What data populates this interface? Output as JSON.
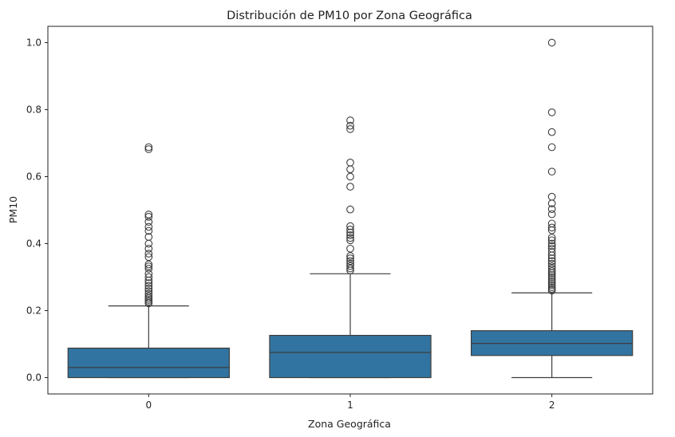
{
  "chart_data": {
    "type": "box",
    "title": "Distribución de PM10 por Zona Geográfica",
    "xlabel": "Zona Geográfica",
    "ylabel": "PM10",
    "categories": [
      "0",
      "1",
      "2"
    ],
    "ylim": [
      -0.05,
      1.05
    ],
    "yticks": [
      "0.0",
      "0.2",
      "0.4",
      "0.6",
      "0.8",
      "1.0"
    ],
    "color": "#3274a1",
    "boxes": [
      {
        "category": "0",
        "whisker_low": 0.0,
        "q1": 0.0,
        "median": 0.03,
        "q3": 0.088,
        "whisker_high": 0.214,
        "outliers": [
          0.222,
          0.227,
          0.232,
          0.237,
          0.243,
          0.25,
          0.258,
          0.266,
          0.274,
          0.282,
          0.29,
          0.3,
          0.31,
          0.325,
          0.332,
          0.338,
          0.36,
          0.37,
          0.385,
          0.4,
          0.42,
          0.438,
          0.45,
          0.465,
          0.48,
          0.487,
          0.682,
          0.688
        ]
      },
      {
        "category": "1",
        "whisker_low": 0.0,
        "q1": 0.0,
        "median": 0.075,
        "q3": 0.126,
        "whisker_high": 0.31,
        "outliers": [
          0.32,
          0.326,
          0.333,
          0.34,
          0.348,
          0.356,
          0.363,
          0.385,
          0.41,
          0.417,
          0.425,
          0.433,
          0.442,
          0.452,
          0.502,
          0.57,
          0.6,
          0.622,
          0.642,
          0.742,
          0.752,
          0.768
        ]
      },
      {
        "category": "2",
        "whisker_low": 0.0,
        "q1": 0.066,
        "median": 0.102,
        "q3": 0.14,
        "whisker_high": 0.253,
        "outliers": [
          0.26,
          0.265,
          0.27,
          0.276,
          0.282,
          0.288,
          0.294,
          0.3,
          0.306,
          0.312,
          0.318,
          0.325,
          0.332,
          0.34,
          0.348,
          0.356,
          0.365,
          0.375,
          0.385,
          0.393,
          0.4,
          0.41,
          0.418,
          0.44,
          0.448,
          0.46,
          0.488,
          0.503,
          0.52,
          0.54,
          0.615,
          0.688,
          0.733,
          0.792,
          1.0
        ]
      }
    ]
  }
}
